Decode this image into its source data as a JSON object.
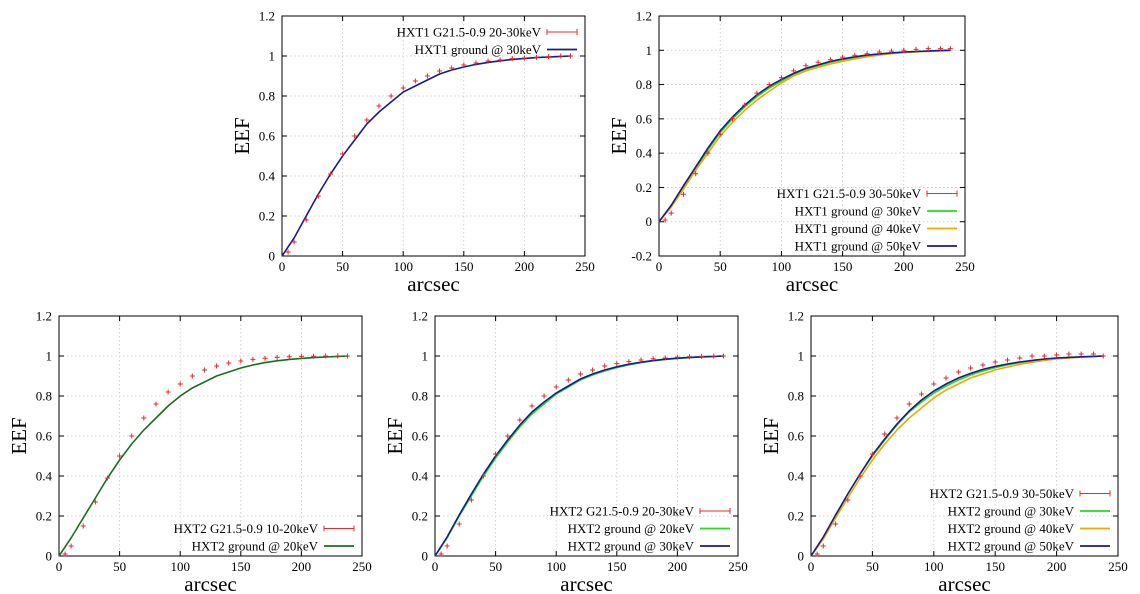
{
  "colors": {
    "data": "#e8282a",
    "ground_30": "#1a1a8c",
    "ground_30_mid": "#22dd22",
    "ground_40": "#f0a800",
    "ground_50": "#1a1a8c",
    "ground_20_green": "#1e6b1e",
    "ground_20": "#22dd22"
  },
  "chart_data": [
    {
      "id": "p1",
      "type": "scatter",
      "title": "",
      "xlabel": "arcsec",
      "ylabel": "EEF",
      "xlim": [
        0,
        250
      ],
      "ylim": [
        0,
        1.2
      ],
      "xticks": [
        0,
        50,
        100,
        150,
        200,
        250
      ],
      "yticks": [
        0,
        0.2,
        0.4,
        0.6,
        0.8,
        1,
        1.2
      ],
      "xtick_labels": [
        "0",
        "50",
        "100",
        "150",
        "200",
        "250"
      ],
      "ytick_labels": [
        "0",
        "0.2",
        "0.4",
        "0.6",
        "0.8",
        "1",
        "1.2"
      ],
      "grid": true,
      "legend_position": "top-right",
      "series": [
        {
          "name": "HXT1 G21.5-0.9 20-30keV",
          "kind": "points",
          "color": "#e8282a",
          "x": [
            5,
            10,
            20,
            30,
            40,
            50,
            60,
            70,
            80,
            90,
            100,
            110,
            120,
            130,
            140,
            150,
            160,
            170,
            180,
            190,
            200,
            210,
            220,
            230,
            238
          ],
          "y": [
            0.02,
            0.07,
            0.18,
            0.3,
            0.41,
            0.51,
            0.6,
            0.68,
            0.75,
            0.8,
            0.84,
            0.875,
            0.9,
            0.925,
            0.94,
            0.955,
            0.965,
            0.975,
            0.98,
            0.987,
            0.99,
            0.993,
            0.997,
            1.0,
            1.0
          ]
        },
        {
          "name": "HXT1 ground @ 30keV",
          "kind": "line",
          "color": "#1a1a8c",
          "x": [
            0,
            10,
            20,
            30,
            40,
            50,
            60,
            70,
            80,
            90,
            100,
            110,
            120,
            130,
            140,
            150,
            160,
            170,
            180,
            190,
            200,
            210,
            220,
            230,
            238
          ],
          "y": [
            0,
            0.09,
            0.2,
            0.31,
            0.41,
            0.5,
            0.58,
            0.66,
            0.72,
            0.77,
            0.82,
            0.85,
            0.88,
            0.91,
            0.93,
            0.945,
            0.958,
            0.968,
            0.976,
            0.983,
            0.988,
            0.992,
            0.995,
            0.998,
            1.0
          ]
        }
      ]
    },
    {
      "id": "p2",
      "type": "scatter",
      "title": "",
      "xlabel": "arcsec",
      "ylabel": "EEF",
      "xlim": [
        0,
        250
      ],
      "ylim": [
        -0.2,
        1.2
      ],
      "xticks": [
        0,
        50,
        100,
        150,
        200,
        250
      ],
      "yticks": [
        -0.2,
        0,
        0.2,
        0.4,
        0.6,
        0.8,
        1,
        1.2
      ],
      "xtick_labels": [
        "0",
        "50",
        "100",
        "150",
        "200",
        "250"
      ],
      "ytick_labels": [
        "-0.2",
        "0",
        "0.2",
        "0.4",
        "0.6",
        "0.8",
        "1",
        "1.2"
      ],
      "grid": true,
      "legend_position": "bottom-right",
      "series": [
        {
          "name": "HXT1 G21.5-0.9 30-50keV",
          "kind": "points",
          "color": "#e8282a",
          "x": [
            5,
            10,
            20,
            30,
            40,
            50,
            60,
            70,
            80,
            90,
            100,
            110,
            120,
            130,
            140,
            150,
            160,
            170,
            180,
            190,
            200,
            210,
            220,
            230,
            238
          ],
          "y": [
            0.01,
            0.05,
            0.16,
            0.28,
            0.4,
            0.51,
            0.6,
            0.68,
            0.75,
            0.8,
            0.84,
            0.88,
            0.91,
            0.93,
            0.945,
            0.96,
            0.97,
            0.98,
            0.99,
            0.995,
            1.0,
            1.005,
            1.01,
            1.01,
            1.01
          ]
        },
        {
          "name": "HXT1 ground @ 30keV",
          "kind": "line",
          "color": "#22dd22",
          "x": [
            0,
            10,
            20,
            30,
            40,
            50,
            60,
            70,
            80,
            90,
            100,
            110,
            120,
            130,
            140,
            150,
            160,
            170,
            180,
            190,
            200,
            210,
            220,
            230,
            238
          ],
          "y": [
            0,
            0.09,
            0.2,
            0.31,
            0.42,
            0.52,
            0.6,
            0.67,
            0.73,
            0.78,
            0.82,
            0.86,
            0.89,
            0.91,
            0.93,
            0.945,
            0.958,
            0.968,
            0.976,
            0.983,
            0.988,
            0.992,
            0.995,
            0.998,
            1.0
          ]
        },
        {
          "name": "HXT1 ground @ 40keV",
          "kind": "line",
          "color": "#f0a800",
          "x": [
            0,
            10,
            20,
            30,
            40,
            50,
            60,
            70,
            80,
            90,
            100,
            110,
            120,
            130,
            140,
            150,
            160,
            170,
            180,
            190,
            200,
            210,
            220,
            230,
            238
          ],
          "y": [
            0,
            0.085,
            0.19,
            0.3,
            0.4,
            0.5,
            0.58,
            0.65,
            0.71,
            0.76,
            0.81,
            0.85,
            0.88,
            0.9,
            0.92,
            0.935,
            0.95,
            0.962,
            0.972,
            0.98,
            0.986,
            0.99,
            0.994,
            0.997,
            1.0
          ]
        },
        {
          "name": "HXT1 ground @ 50keV",
          "kind": "line",
          "color": "#1a1a8c",
          "x": [
            0,
            10,
            20,
            30,
            40,
            50,
            60,
            70,
            80,
            90,
            100,
            110,
            120,
            130,
            140,
            150,
            160,
            170,
            180,
            190,
            200,
            210,
            220,
            230,
            238
          ],
          "y": [
            0,
            0.095,
            0.21,
            0.32,
            0.43,
            0.53,
            0.61,
            0.68,
            0.74,
            0.79,
            0.83,
            0.865,
            0.895,
            0.915,
            0.935,
            0.95,
            0.962,
            0.972,
            0.979,
            0.985,
            0.99,
            0.993,
            0.996,
            0.998,
            1.0
          ]
        }
      ]
    },
    {
      "id": "p3",
      "type": "scatter",
      "title": "",
      "xlabel": "arcsec",
      "ylabel": "EEF",
      "xlim": [
        0,
        250
      ],
      "ylim": [
        0,
        1.2
      ],
      "xticks": [
        0,
        50,
        100,
        150,
        200,
        250
      ],
      "yticks": [
        0,
        0.2,
        0.4,
        0.6,
        0.8,
        1,
        1.2
      ],
      "xtick_labels": [
        "0",
        "50",
        "100",
        "150",
        "200",
        "250"
      ],
      "ytick_labels": [
        "0",
        "0.2",
        "0.4",
        "0.6",
        "0.8",
        "1",
        "1.2"
      ],
      "grid": true,
      "legend_position": "bottom-right",
      "series": [
        {
          "name": "HXT2 G21.5-0.9 10-20keV",
          "kind": "points",
          "color": "#e8282a",
          "x": [
            5,
            10,
            20,
            30,
            40,
            50,
            60,
            70,
            80,
            90,
            100,
            110,
            120,
            130,
            140,
            150,
            160,
            170,
            180,
            190,
            200,
            210,
            220,
            230,
            238
          ],
          "y": [
            0.01,
            0.05,
            0.15,
            0.27,
            0.39,
            0.5,
            0.6,
            0.69,
            0.76,
            0.82,
            0.86,
            0.9,
            0.93,
            0.95,
            0.965,
            0.975,
            0.983,
            0.989,
            0.993,
            0.996,
            0.998,
            0.999,
            1.0,
            1.0,
            1.0
          ]
        },
        {
          "name": "HXT2 ground @ 20keV",
          "kind": "line",
          "color": "#1e6b1e",
          "x": [
            0,
            10,
            20,
            30,
            40,
            50,
            60,
            70,
            80,
            90,
            100,
            110,
            120,
            130,
            140,
            150,
            160,
            170,
            180,
            190,
            200,
            210,
            220,
            230,
            238
          ],
          "y": [
            0,
            0.09,
            0.19,
            0.29,
            0.39,
            0.48,
            0.56,
            0.63,
            0.69,
            0.75,
            0.8,
            0.84,
            0.87,
            0.9,
            0.92,
            0.94,
            0.955,
            0.967,
            0.976,
            0.983,
            0.988,
            0.992,
            0.995,
            0.998,
            1.0
          ]
        }
      ]
    },
    {
      "id": "p4",
      "type": "scatter",
      "title": "",
      "xlabel": "arcsec",
      "ylabel": "EEF",
      "xlim": [
        0,
        250
      ],
      "ylim": [
        0,
        1.2
      ],
      "xticks": [
        0,
        50,
        100,
        150,
        200,
        250
      ],
      "yticks": [
        0,
        0.2,
        0.4,
        0.6,
        0.8,
        1,
        1.2
      ],
      "xtick_labels": [
        "0",
        "50",
        "100",
        "150",
        "200",
        "250"
      ],
      "ytick_labels": [
        "0",
        "0.2",
        "0.4",
        "0.6",
        "0.8",
        "1",
        "1.2"
      ],
      "grid": true,
      "legend_position": "bottom-right",
      "series": [
        {
          "name": "HXT2 G21.5-0.9 20-30keV",
          "kind": "points",
          "color": "#e8282a",
          "x": [
            5,
            10,
            20,
            30,
            40,
            50,
            60,
            70,
            80,
            90,
            100,
            110,
            120,
            130,
            140,
            150,
            160,
            170,
            180,
            190,
            200,
            210,
            220,
            230,
            238
          ],
          "y": [
            0.01,
            0.05,
            0.16,
            0.28,
            0.4,
            0.51,
            0.6,
            0.68,
            0.75,
            0.8,
            0.845,
            0.88,
            0.91,
            0.93,
            0.95,
            0.962,
            0.972,
            0.98,
            0.986,
            0.99,
            0.994,
            0.996,
            0.998,
            1.0,
            1.0
          ]
        },
        {
          "name": "HXT2 ground @ 20keV",
          "kind": "line",
          "color": "#22dd22",
          "x": [
            0,
            10,
            20,
            30,
            40,
            50,
            60,
            70,
            80,
            90,
            100,
            110,
            120,
            130,
            140,
            150,
            160,
            170,
            180,
            190,
            200,
            210,
            220,
            230,
            238
          ],
          "y": [
            0,
            0.09,
            0.2,
            0.3,
            0.4,
            0.49,
            0.57,
            0.645,
            0.71,
            0.76,
            0.81,
            0.845,
            0.88,
            0.905,
            0.925,
            0.942,
            0.956,
            0.967,
            0.976,
            0.983,
            0.988,
            0.992,
            0.995,
            0.998,
            1.0
          ]
        },
        {
          "name": "HXT2 ground @ 30keV",
          "kind": "line",
          "color": "#1a1a8c",
          "x": [
            0,
            10,
            20,
            30,
            40,
            50,
            60,
            70,
            80,
            90,
            100,
            110,
            120,
            130,
            140,
            150,
            160,
            170,
            180,
            190,
            200,
            210,
            220,
            230,
            238
          ],
          "y": [
            0,
            0.095,
            0.205,
            0.31,
            0.41,
            0.5,
            0.58,
            0.655,
            0.72,
            0.77,
            0.815,
            0.85,
            0.885,
            0.91,
            0.93,
            0.946,
            0.959,
            0.969,
            0.977,
            0.984,
            0.989,
            0.993,
            0.996,
            0.998,
            1.0
          ]
        }
      ]
    },
    {
      "id": "p5",
      "type": "scatter",
      "title": "",
      "xlabel": "arcsec",
      "ylabel": "EEF",
      "xlim": [
        0,
        250
      ],
      "ylim": [
        0,
        1.2
      ],
      "xticks": [
        0,
        50,
        100,
        150,
        200,
        250
      ],
      "yticks": [
        0,
        0.2,
        0.4,
        0.6,
        0.8,
        1,
        1.2
      ],
      "xtick_labels": [
        "0",
        "50",
        "100",
        "150",
        "200",
        "250"
      ],
      "ytick_labels": [
        "0",
        "0.2",
        "0.4",
        "0.6",
        "0.8",
        "1",
        "1.2"
      ],
      "grid": true,
      "legend_position": "bottom-right",
      "series": [
        {
          "name": "HXT2 G21.5-0.9 30-50keV",
          "kind": "points",
          "color": "#e8282a",
          "x": [
            5,
            10,
            20,
            30,
            40,
            50,
            60,
            70,
            80,
            90,
            100,
            110,
            120,
            130,
            140,
            150,
            160,
            170,
            180,
            190,
            200,
            210,
            220,
            230,
            238
          ],
          "y": [
            0.01,
            0.05,
            0.16,
            0.28,
            0.4,
            0.51,
            0.61,
            0.69,
            0.76,
            0.81,
            0.86,
            0.89,
            0.92,
            0.94,
            0.955,
            0.97,
            0.98,
            0.99,
            1.0,
            1.0,
            1.005,
            1.01,
            1.01,
            1.01,
            1.0
          ]
        },
        {
          "name": "HXT2 ground @ 30keV",
          "kind": "line",
          "color": "#22dd22",
          "x": [
            0,
            10,
            20,
            30,
            40,
            50,
            60,
            70,
            80,
            90,
            100,
            110,
            120,
            130,
            140,
            150,
            160,
            170,
            180,
            190,
            200,
            210,
            220,
            230,
            238
          ],
          "y": [
            0,
            0.09,
            0.2,
            0.31,
            0.41,
            0.5,
            0.58,
            0.655,
            0.72,
            0.77,
            0.815,
            0.85,
            0.88,
            0.905,
            0.925,
            0.942,
            0.956,
            0.967,
            0.976,
            0.983,
            0.988,
            0.992,
            0.995,
            0.998,
            1.0
          ]
        },
        {
          "name": "HXT2 ground @ 40keV",
          "kind": "line",
          "color": "#f0a800",
          "x": [
            0,
            10,
            20,
            30,
            40,
            50,
            60,
            70,
            80,
            90,
            100,
            110,
            120,
            130,
            140,
            150,
            160,
            170,
            180,
            190,
            200,
            210,
            220,
            230,
            238
          ],
          "y": [
            0,
            0.085,
            0.19,
            0.29,
            0.39,
            0.48,
            0.56,
            0.63,
            0.69,
            0.74,
            0.79,
            0.83,
            0.86,
            0.89,
            0.91,
            0.93,
            0.945,
            0.958,
            0.969,
            0.978,
            0.985,
            0.99,
            0.994,
            0.997,
            1.0
          ]
        },
        {
          "name": "HXT2 ground @ 50keV",
          "kind": "line",
          "color": "#1a1a8c",
          "x": [
            0,
            10,
            20,
            30,
            40,
            50,
            60,
            70,
            80,
            90,
            100,
            110,
            120,
            130,
            140,
            150,
            160,
            170,
            180,
            190,
            200,
            210,
            220,
            230,
            238
          ],
          "y": [
            0,
            0.095,
            0.205,
            0.31,
            0.41,
            0.505,
            0.585,
            0.66,
            0.725,
            0.78,
            0.825,
            0.86,
            0.89,
            0.913,
            0.933,
            0.948,
            0.96,
            0.97,
            0.978,
            0.985,
            0.99,
            0.993,
            0.996,
            0.998,
            1.0
          ]
        }
      ]
    }
  ]
}
